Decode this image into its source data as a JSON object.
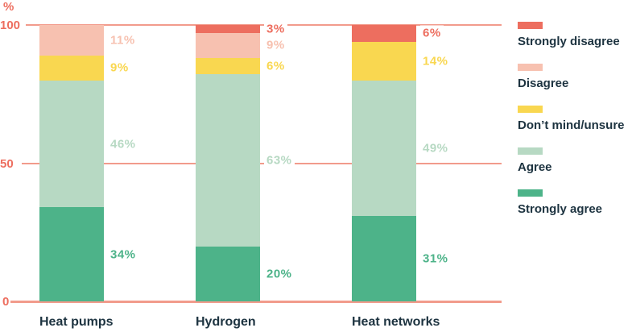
{
  "chart_data": {
    "type": "bar",
    "subtype": "stacked-percentage-column",
    "title": "",
    "xlabel": "",
    "ylabel": "%",
    "ylim": [
      0,
      100
    ],
    "yticks": [
      100,
      50,
      0
    ],
    "grid": "horizontal",
    "legend_position": "right",
    "value_label_suffix": "%",
    "categories": [
      "Heat pumps",
      "Hydrogen",
      "Heat networks"
    ],
    "series": [
      {
        "name": "Strongly disagree",
        "color": "#ED6E5F",
        "values": [
          0,
          3,
          6
        ]
      },
      {
        "name": "Disagree",
        "color": "#F7C1B0",
        "values": [
          11,
          9,
          0
        ]
      },
      {
        "name": "Don’t mind/unsure",
        "color": "#F9D750",
        "values": [
          9,
          6,
          14
        ]
      },
      {
        "name": "Agree",
        "color": "#B7D9C3",
        "values": [
          46,
          63,
          49
        ]
      },
      {
        "name": "Strongly agree",
        "color": "#4DB389",
        "values": [
          34,
          20,
          31
        ]
      }
    ],
    "colors": {
      "axis_text": "#ED6E5F",
      "gridline": "#F29B8C",
      "category_text": "#1D3340",
      "legend_text": "#1D3340",
      "background": "#FFFFFF"
    }
  }
}
